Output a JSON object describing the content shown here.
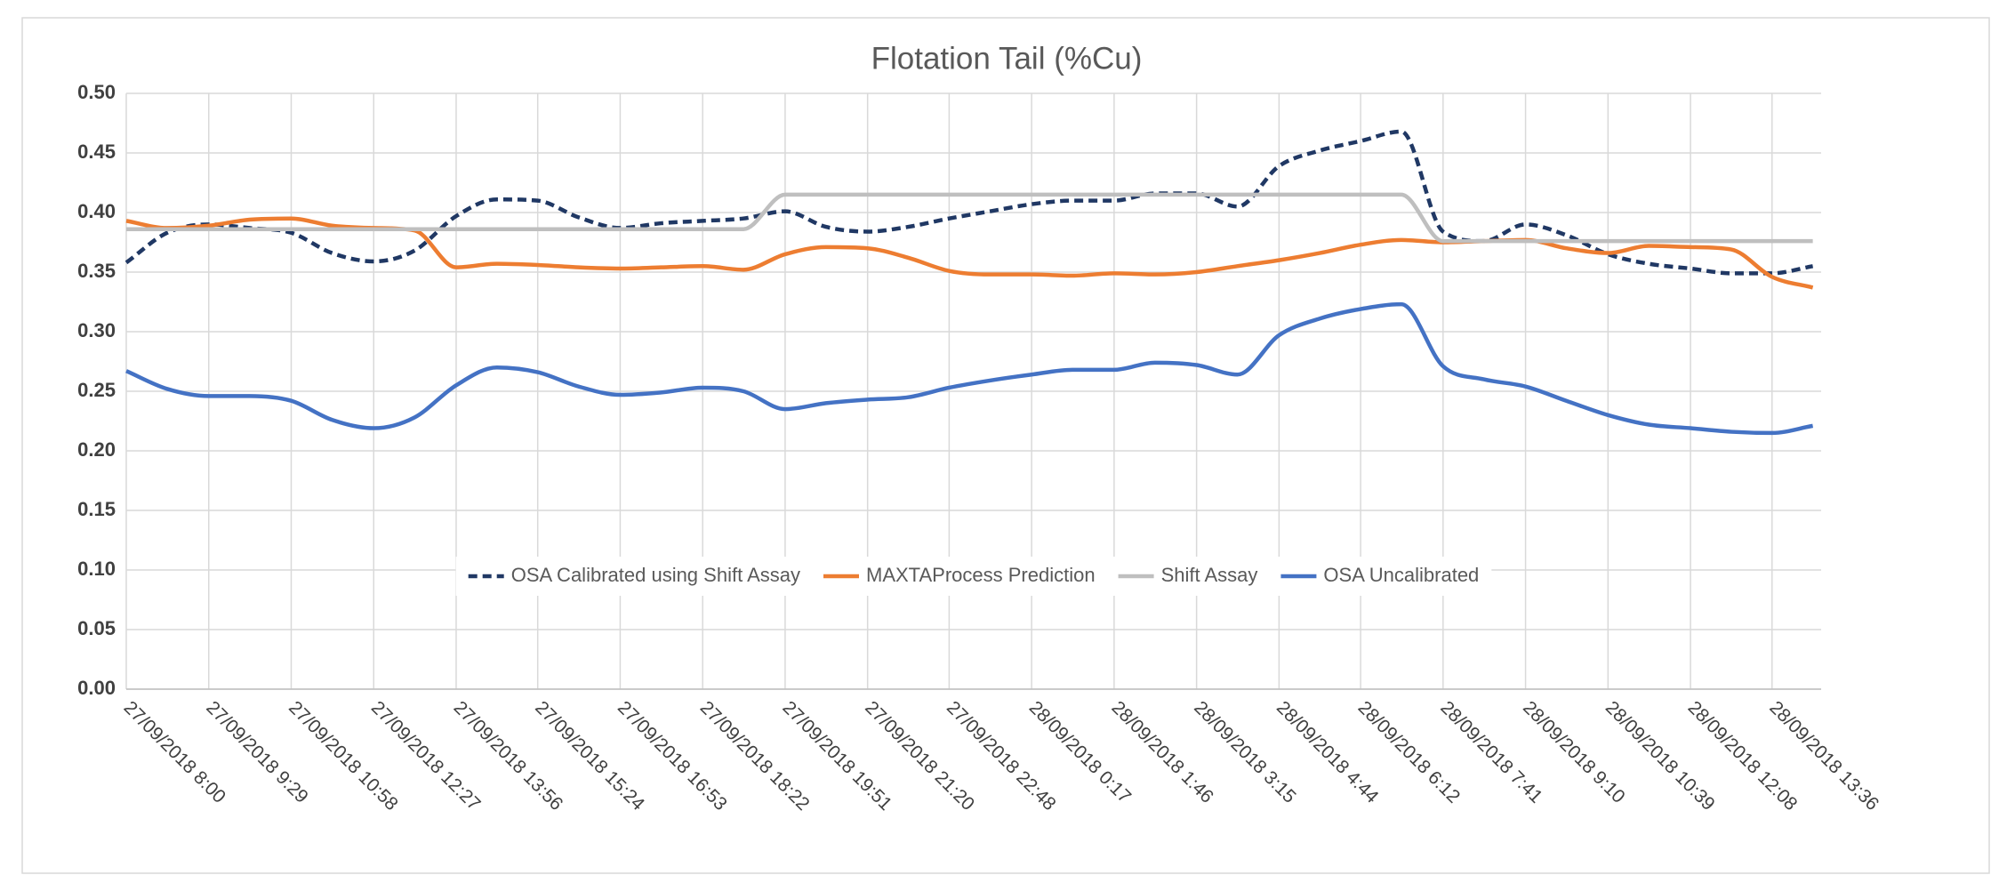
{
  "chart_data": {
    "type": "line",
    "title": "Flotation Tail (%Cu)",
    "x": [
      "27/09/2018 8:00",
      "27/09/2018 8:44",
      "27/09/2018 9:29",
      "27/09/2018 10:13",
      "27/09/2018 10:58",
      "27/09/2018 11:42",
      "27/09/2018 12:27",
      "27/09/2018 13:11",
      "27/09/2018 13:56",
      "27/09/2018 14:40",
      "27/09/2018 15:24",
      "27/09/2018 16:08",
      "27/09/2018 16:53",
      "27/09/2018 17:37",
      "27/09/2018 18:22",
      "27/09/2018 19:06",
      "27/09/2018 19:51",
      "27/09/2018 20:35",
      "27/09/2018 21:20",
      "27/09/2018 22:04",
      "27/09/2018 22:48",
      "27/09/2018 23:32",
      "28/09/2018 0:17",
      "28/09/2018 1:01",
      "28/09/2018 1:46",
      "28/09/2018 2:30",
      "28/09/2018 3:15",
      "28/09/2018 3:59",
      "28/09/2018 4:44",
      "28/09/2018 5:28",
      "28/09/2018 6:12",
      "28/09/2018 6:56",
      "28/09/2018 7:41",
      "28/09/2018 8:25",
      "28/09/2018 9:10",
      "28/09/2018 9:54",
      "28/09/2018 10:39",
      "28/09/2018 11:23",
      "28/09/2018 12:08",
      "28/09/2018 12:52",
      "28/09/2018 13:36",
      "28/09/2018 14:20"
    ],
    "series": [
      {
        "name": "OSA Calibrated using Shift Assay",
        "color": "#203864",
        "dashed": true,
        "values": [
          0.358,
          0.383,
          0.39,
          0.387,
          0.383,
          0.366,
          0.359,
          0.368,
          0.397,
          0.411,
          0.41,
          0.396,
          0.387,
          0.391,
          0.393,
          0.395,
          0.401,
          0.388,
          0.384,
          0.388,
          0.395,
          0.401,
          0.407,
          0.41,
          0.41,
          0.416,
          0.416,
          0.405,
          0.439,
          0.452,
          0.46,
          0.468,
          0.384,
          0.376,
          0.39,
          0.381,
          0.365,
          0.357,
          0.353,
          0.349,
          0.349,
          0.355
        ]
      },
      {
        "name": "MAXTAProcess Prediction",
        "color": "#ed7d31",
        "dashed": false,
        "values": [
          0.393,
          0.387,
          0.389,
          0.394,
          0.395,
          0.389,
          0.387,
          0.385,
          0.354,
          0.357,
          0.356,
          0.354,
          0.353,
          0.354,
          0.355,
          0.352,
          0.365,
          0.371,
          0.37,
          0.362,
          0.351,
          0.348,
          0.348,
          0.347,
          0.349,
          0.348,
          0.35,
          0.355,
          0.36,
          0.366,
          0.373,
          0.377,
          0.375,
          0.376,
          0.377,
          0.37,
          0.366,
          0.372,
          0.371,
          0.369,
          0.346,
          0.337
        ]
      },
      {
        "name": "Shift Assay",
        "color": "#bfbfbf",
        "dashed": false,
        "values": [
          0.386,
          0.386,
          0.386,
          0.386,
          0.386,
          0.386,
          0.386,
          0.386,
          0.386,
          0.386,
          0.386,
          0.386,
          0.386,
          0.386,
          0.386,
          0.386,
          0.415,
          0.415,
          0.415,
          0.415,
          0.415,
          0.415,
          0.415,
          0.415,
          0.415,
          0.415,
          0.415,
          0.415,
          0.415,
          0.415,
          0.415,
          0.415,
          0.376,
          0.376,
          0.376,
          0.376,
          0.376,
          0.376,
          0.376,
          0.376,
          0.376,
          0.376
        ]
      },
      {
        "name": "OSA Uncalibrated",
        "color": "#4472c4",
        "dashed": false,
        "values": [
          0.267,
          0.252,
          0.246,
          0.246,
          0.242,
          0.226,
          0.219,
          0.228,
          0.255,
          0.27,
          0.266,
          0.254,
          0.247,
          0.249,
          0.253,
          0.25,
          0.235,
          0.24,
          0.243,
          0.245,
          0.253,
          0.259,
          0.264,
          0.268,
          0.268,
          0.274,
          0.272,
          0.264,
          0.297,
          0.311,
          0.319,
          0.323,
          0.271,
          0.26,
          0.254,
          0.242,
          0.23,
          0.222,
          0.219,
          0.216,
          0.215,
          0.221
        ]
      }
    ],
    "xlim": [
      "27/09/2018 8:00",
      "28/09/2018 14:29"
    ],
    "xticks": [
      "27/09/2018 8:00",
      "27/09/2018 9:29",
      "27/09/2018 10:58",
      "27/09/2018 12:27",
      "27/09/2018 13:56",
      "27/09/2018 15:24",
      "27/09/2018 16:53",
      "27/09/2018 18:22",
      "27/09/2018 19:51",
      "27/09/2018 21:20",
      "27/09/2018 22:48",
      "28/09/2018 0:17",
      "28/09/2018 1:46",
      "28/09/2018 3:15",
      "28/09/2018 4:44",
      "28/09/2018 6:12",
      "28/09/2018 7:41",
      "28/09/2018 9:10",
      "28/09/2018 10:39",
      "28/09/2018 12:08",
      "28/09/2018 13:36"
    ],
    "ylim": [
      0,
      0.5
    ],
    "yticks": [
      {
        "value": 0,
        "label": "0.00"
      },
      {
        "value": 0.05,
        "label": "0.05"
      },
      {
        "value": 0.1,
        "label": "0.10"
      },
      {
        "value": 0.15,
        "label": "0.15"
      },
      {
        "value": 0.2,
        "label": "0.20"
      },
      {
        "value": 0.25,
        "label": "0.25"
      },
      {
        "value": 0.3,
        "label": "0.30"
      },
      {
        "value": 0.35,
        "label": "0.35"
      },
      {
        "value": 0.4,
        "label": "0.40"
      },
      {
        "value": 0.45,
        "label": "0.45"
      },
      {
        "value": 0.5,
        "label": "0.50"
      }
    ],
    "grid": true,
    "smooth": true,
    "legend": "inside-bottom-center"
  }
}
